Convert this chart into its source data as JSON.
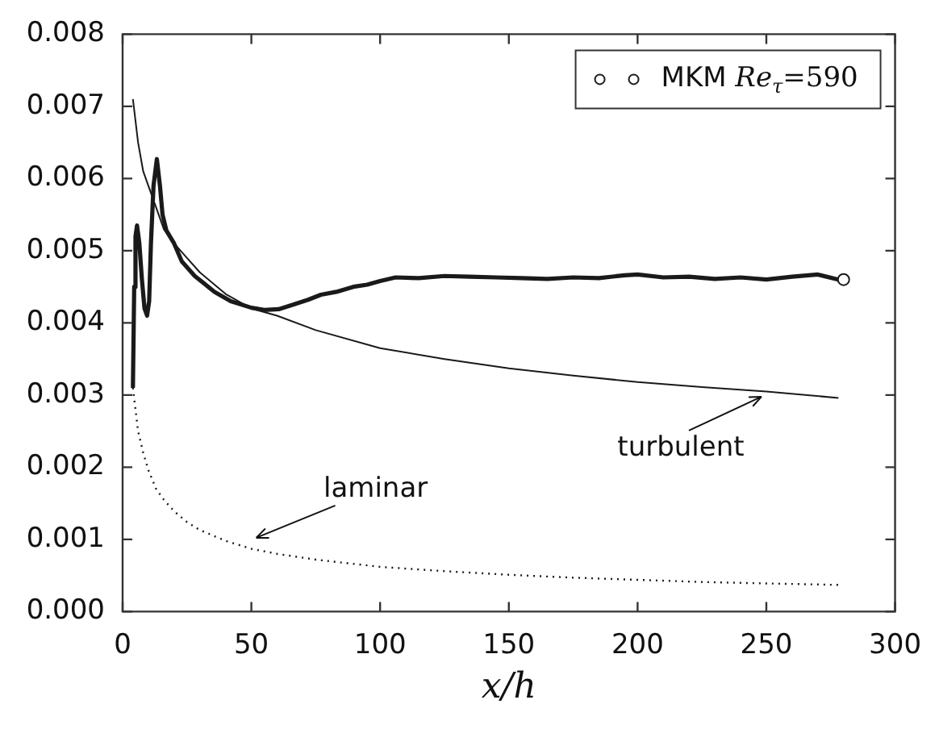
{
  "chart_data": {
    "type": "line",
    "xlabel": "x/h",
    "xlim": [
      0,
      300
    ],
    "xticks": [
      0,
      50,
      100,
      150,
      200,
      250,
      300
    ],
    "ylim": [
      0,
      0.008
    ],
    "yticks": [
      {
        "value": 0,
        "label": "0.000"
      },
      {
        "value": 0.001,
        "label": "0.001"
      },
      {
        "value": 0.002,
        "label": "0.002"
      },
      {
        "value": 0.003,
        "label": "0.003"
      },
      {
        "value": 0.004,
        "label": "0.004"
      },
      {
        "value": 0.005,
        "label": "0.005"
      },
      {
        "value": 0.006,
        "label": "0.006"
      },
      {
        "value": 0.007,
        "label": "0.007"
      },
      {
        "value": 0.008,
        "label": "0.008"
      }
    ],
    "grid": false,
    "legend": "top right",
    "annotations": [
      {
        "text": "turbulent",
        "x": 250,
        "y": 0.003
      },
      {
        "text": "laminar",
        "x": 50,
        "y": 0.001
      }
    ],
    "series": [
      {
        "color": "#1a1a1a",
        "line_style": "solid",
        "marker": "none",
        "x": [
          4,
          4.5,
          5,
          5.6,
          6.5,
          7.5,
          8.5,
          9.5,
          10.3,
          11,
          12,
          13.3,
          14.5,
          15.5,
          17,
          20,
          23,
          28,
          35.7,
          42,
          50,
          55,
          60.6,
          66,
          72,
          77,
          83,
          89.6,
          95,
          100,
          106,
          115,
          125,
          135,
          145,
          155,
          165,
          175,
          185,
          195,
          200,
          210,
          220,
          230,
          240,
          250,
          260,
          270,
          278
        ],
        "values": [
          0.0031,
          0.0045,
          0.0052,
          0.00535,
          0.0051,
          0.0046,
          0.0042,
          0.0041,
          0.0043,
          0.0051,
          0.0059,
          0.00627,
          0.0059,
          0.0055,
          0.00528,
          0.0051,
          0.00485,
          0.00465,
          0.00443,
          0.0043,
          0.00421,
          0.00418,
          0.00419,
          0.00425,
          0.00432,
          0.00439,
          0.00443,
          0.0045,
          0.00453,
          0.00458,
          0.00463,
          0.00462,
          0.00465,
          0.00464,
          0.00463,
          0.00462,
          0.00461,
          0.00463,
          0.00462,
          0.00466,
          0.00467,
          0.00463,
          0.00464,
          0.00461,
          0.00463,
          0.0046,
          0.00464,
          0.00467,
          0.0046
        ]
      },
      {
        "color": "#1a1a1a",
        "line_style": "solid",
        "marker": "none",
        "x": [
          4,
          6,
          8,
          10,
          13,
          16,
          20,
          25,
          30,
          40,
          50,
          60,
          75,
          100,
          125,
          150,
          175,
          200,
          225,
          250,
          278
        ],
        "values": [
          0.0071,
          0.0065,
          0.0061,
          0.0059,
          0.0056,
          0.0053,
          0.0051,
          0.0049,
          0.0047,
          0.0044,
          0.0042,
          0.0041,
          0.0039,
          0.00365,
          0.0035,
          0.00337,
          0.00327,
          0.00318,
          0.00311,
          0.00305,
          0.00296
        ]
      },
      {
        "color": "#1a1a1a",
        "line_style": "dotted",
        "marker": "none",
        "x": [
          4,
          5,
          6,
          8,
          10,
          13,
          16,
          20,
          25,
          30,
          40,
          50,
          60,
          75,
          100,
          125,
          150,
          175,
          200,
          225,
          250,
          278
        ],
        "values": [
          0.0031,
          0.0028,
          0.0025,
          0.0022,
          0.00196,
          0.0017,
          0.00155,
          0.00139,
          0.00124,
          0.00113,
          0.00098,
          0.00087,
          0.0008,
          0.00072,
          0.00062,
          0.00056,
          0.00051,
          0.00047,
          0.00044,
          0.00041,
          0.00039,
          0.00037
        ]
      },
      {
        "type": "scatter",
        "name": "MKM Re$_{τ}$=590",
        "color": "#1a1a1a",
        "marker": "circle",
        "x": [
          280
        ],
        "values": [
          0.0046
        ]
      }
    ]
  }
}
